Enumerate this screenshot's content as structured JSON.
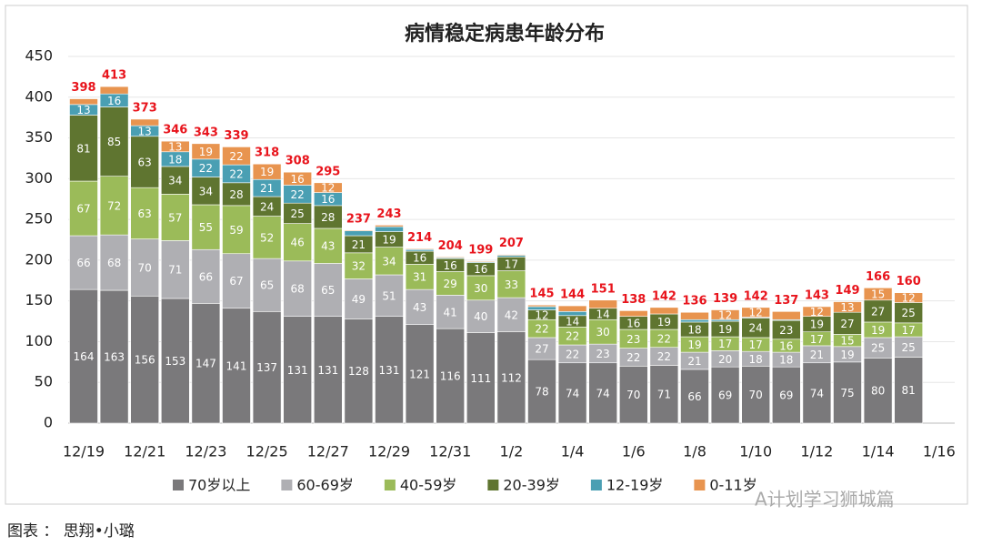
{
  "chart_data": {
    "type": "stacked_bar",
    "title": "病情稳定病患年龄分布",
    "categories": [
      "12/19",
      null,
      "12/21",
      null,
      "12/23",
      null,
      "12/25",
      null,
      "12/27",
      null,
      "12/29",
      null,
      "12/31",
      null,
      "1/2",
      null,
      "1/4",
      null,
      "1/6",
      null,
      "1/8",
      null,
      "1/10",
      null,
      "1/12",
      null,
      "1/14",
      null,
      "1/16"
    ],
    "series": [
      {
        "name": "70岁以上",
        "color": "#7a797b",
        "values": [
          164,
          163,
          156,
          153,
          147,
          141,
          137,
          131,
          131,
          128,
          131,
          121,
          116,
          111,
          112,
          78,
          74,
          74,
          70,
          71,
          66,
          69,
          70,
          69,
          74,
          75,
          80,
          81,
          null
        ]
      },
      {
        "name": "60-69岁",
        "color": "#afafb3",
        "values": [
          66,
          68,
          70,
          71,
          66,
          67,
          65,
          68,
          65,
          49,
          51,
          43,
          41,
          40,
          42,
          27,
          22,
          23,
          22,
          22,
          21,
          20,
          18,
          18,
          21,
          19,
          25,
          25,
          null
        ]
      },
      {
        "name": "40-59岁",
        "color": "#9bbb59",
        "values": [
          67,
          72,
          63,
          57,
          55,
          59,
          52,
          46,
          43,
          32,
          34,
          31,
          29,
          30,
          33,
          22,
          22,
          30,
          23,
          22,
          19,
          17,
          17,
          16,
          17,
          15,
          19,
          17,
          null
        ]
      },
      {
        "name": "20-39岁",
        "color": "#5f7530",
        "values": [
          81,
          85,
          63,
          34,
          34,
          28,
          24,
          25,
          28,
          21,
          19,
          16,
          16,
          16,
          17,
          12,
          14,
          14,
          16,
          19,
          18,
          19,
          24,
          23,
          19,
          27,
          27,
          25,
          null
        ]
      },
      {
        "name": "12-19岁",
        "color": "#4a9fb3",
        "values": [
          13,
          16,
          13,
          18,
          22,
          22,
          21,
          22,
          16,
          6,
          6,
          2,
          1,
          1,
          2,
          4,
          5,
          0,
          0,
          0,
          3,
          2,
          1,
          1,
          0,
          0,
          0,
          0,
          null
        ]
      },
      {
        "name": "0-11岁",
        "color": "#e8944f",
        "values": [
          7,
          9,
          8,
          13,
          19,
          22,
          19,
          16,
          12,
          1,
          2,
          1,
          1,
          1,
          1,
          2,
          7,
          10,
          7,
          8,
          9,
          12,
          12,
          10,
          12,
          13,
          15,
          12,
          null
        ]
      }
    ],
    "totals": [
      398,
      413,
      373,
      346,
      343,
      339,
      318,
      308,
      295,
      237,
      243,
      214,
      204,
      199,
      207,
      145,
      144,
      151,
      138,
      142,
      136,
      139,
      142,
      137,
      143,
      149,
      166,
      160,
      null
    ],
    "total_color": "#e8141c",
    "ylim": [
      0,
      450
    ],
    "yticks": [
      0,
      50,
      100,
      150,
      200,
      250,
      300,
      350,
      400,
      450
    ],
    "grid": true,
    "legend": "bottom"
  },
  "caption": "图表 ： 思翔•小璐",
  "watermark": "A计划学习狮城篇"
}
